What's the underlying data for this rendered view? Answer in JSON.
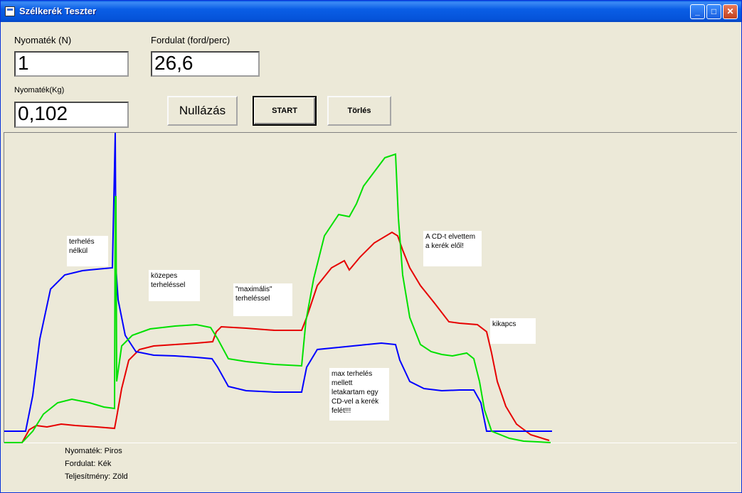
{
  "window": {
    "title": "Szélkerék Teszter"
  },
  "controls": {
    "nyomatek_n_label": "Nyomaték (N)",
    "nyomatek_n_value": "1",
    "fordulat_label": "Fordulat (ford/perc)",
    "fordulat_value": "26,6",
    "nyomatek_kg_label": "Nyomaték(Kg)",
    "nyomatek_kg_value": "0,102",
    "nullazas_label": "Nullázás",
    "start_label": "START",
    "torles_label": "Törlés"
  },
  "annotations": [
    {
      "text": "terhelés\nnélkül"
    },
    {
      "text": "közepes\nterheléssel"
    },
    {
      "text": "\"maximális\"\nterheléssel"
    },
    {
      "text": "A CD-t elvettem\na kerék elől!"
    },
    {
      "text": "kikapcs"
    },
    {
      "text": "max terhelés\nmellett\nletakartam egy\nCD-vel a kerék\nfelét!!!"
    }
  ],
  "legend": [
    {
      "text": "Nyomaték: Piros"
    },
    {
      "text": "Fordulat: Kék"
    },
    {
      "text": "Teljesítmény: Zöld"
    }
  ],
  "chart_data": {
    "type": "line",
    "series": [
      {
        "color": "#e60000"
      },
      {
        "color": "#0000ff"
      },
      {
        "color": "#00e000"
      }
    ]
  }
}
